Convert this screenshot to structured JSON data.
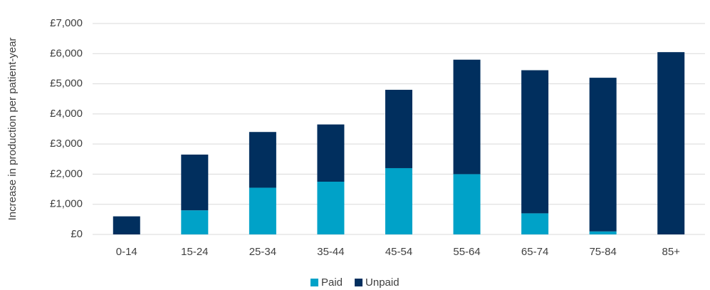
{
  "chart_data": {
    "type": "stacked_bar",
    "y_axis_label": "Increase in production per patient-year",
    "categories": [
      "0-14",
      "15-24",
      "25-34",
      "35-44",
      "45-54",
      "55-64",
      "65-74",
      "75-84",
      "85+"
    ],
    "series": [
      {
        "name": "Paid",
        "color": "#00a2c8",
        "values": [
          0,
          800,
          1550,
          1750,
          2200,
          2000,
          700,
          100,
          0
        ]
      },
      {
        "name": "Unpaid",
        "color": "#012f5e",
        "values": [
          600,
          1850,
          1850,
          1900,
          2600,
          3800,
          4750,
          5100,
          6050
        ]
      }
    ],
    "ylim": [
      0,
      7000
    ],
    "yticks": [
      {
        "value": 0,
        "label": "£0"
      },
      {
        "value": 1000,
        "label": "£1,000"
      },
      {
        "value": 2000,
        "label": "£2,000"
      },
      {
        "value": 3000,
        "label": "£3,000"
      },
      {
        "value": 4000,
        "label": "£4,000"
      },
      {
        "value": 5000,
        "label": "£5,000"
      },
      {
        "value": 6000,
        "label": "£6,000"
      },
      {
        "value": 7000,
        "label": "£7,000"
      }
    ],
    "grid": true,
    "legend": "bottom"
  }
}
